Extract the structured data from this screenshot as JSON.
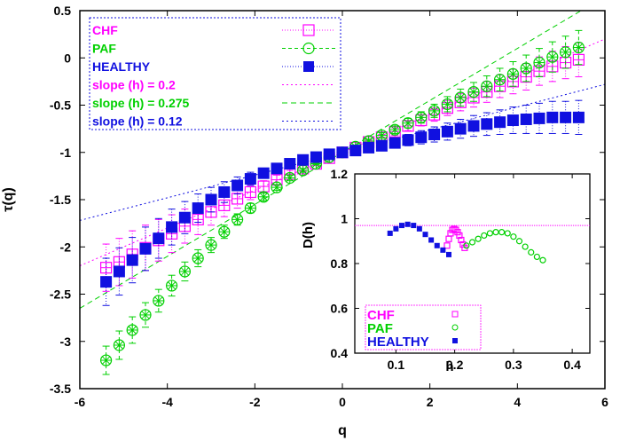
{
  "colors": {
    "CHF": "#ff00ff",
    "PAF": "#00d000",
    "HEALTHY": "#1010e0",
    "frame": "#000000",
    "hline": "#ff00ff"
  },
  "chart_data": [
    {
      "type": "scatter",
      "xlabel": "q",
      "ylabel": "τ(q)",
      "xlim": [
        -6,
        6
      ],
      "ylim": [
        -3.5,
        0.5
      ],
      "xticks": [
        "-6",
        "-4",
        "-2",
        "0",
        "2",
        "4",
        "6"
      ],
      "yticks": [
        "0.5",
        "0",
        "-0.5",
        "-1",
        "-1.5",
        "-2",
        "-2.5",
        "-3",
        "-3.5"
      ],
      "legend_position": "top-left",
      "legend": [
        {
          "label": "CHF",
          "color": "#ff00ff",
          "style": "points-square-plus"
        },
        {
          "label": "PAF",
          "color": "#00d000",
          "style": "points-circle-plus"
        },
        {
          "label": "HEALTHY",
          "color": "#1010e0",
          "style": "points-filled-square"
        },
        {
          "label": "slope (h) = 0.2",
          "color": "#ff00ff",
          "style": "dotted-line"
        },
        {
          "label": "slope (h) = 0.275",
          "color": "#00d000",
          "style": "dashed-line"
        },
        {
          "label": "slope (h) = 0.12",
          "color": "#1010e0",
          "style": "dotted-line"
        }
      ],
      "q": [
        -5.4,
        -5.1,
        -4.8,
        -4.5,
        -4.2,
        -3.9,
        -3.6,
        -3.3,
        -3.0,
        -2.7,
        -2.4,
        -2.1,
        -1.8,
        -1.5,
        -1.2,
        -0.9,
        -0.6,
        -0.3,
        0.0,
        0.3,
        0.6,
        0.9,
        1.2,
        1.5,
        1.8,
        2.1,
        2.4,
        2.7,
        3.0,
        3.3,
        3.6,
        3.9,
        4.2,
        4.5,
        4.8,
        5.1,
        5.4
      ],
      "series": [
        {
          "name": "CHF",
          "color": "#ff00ff",
          "values": [
            -2.22,
            -2.16,
            -2.08,
            -2.01,
            -1.93,
            -1.86,
            -1.78,
            -1.71,
            -1.63,
            -1.56,
            -1.49,
            -1.42,
            -1.36,
            -1.29,
            -1.23,
            -1.17,
            -1.12,
            -1.06,
            -1.0,
            -0.95,
            -0.89,
            -0.84,
            -0.78,
            -0.72,
            -0.66,
            -0.6,
            -0.53,
            -0.47,
            -0.42,
            -0.36,
            -0.3,
            -0.25,
            -0.2,
            -0.14,
            -0.09,
            -0.05,
            -0.02
          ],
          "error": [
            0.25,
            0.25,
            0.25,
            0.24,
            0.22,
            0.2,
            0.18,
            0.16,
            0.14,
            0.12,
            0.1,
            0.08,
            0.06,
            0.05,
            0.04,
            0.03,
            0.02,
            0.01,
            0.0,
            0.01,
            0.02,
            0.03,
            0.04,
            0.05,
            0.06,
            0.07,
            0.08,
            0.09,
            0.1,
            0.11,
            0.12,
            0.13,
            0.14,
            0.15,
            0.16,
            0.17,
            0.18
          ]
        },
        {
          "name": "PAF",
          "color": "#00d000",
          "values": [
            -3.2,
            -3.04,
            -2.88,
            -2.72,
            -2.57,
            -2.41,
            -2.26,
            -2.12,
            -1.98,
            -1.84,
            -1.71,
            -1.59,
            -1.47,
            -1.37,
            -1.27,
            -1.19,
            -1.12,
            -1.05,
            -1.0,
            -0.94,
            -0.88,
            -0.82,
            -0.76,
            -0.69,
            -0.63,
            -0.56,
            -0.49,
            -0.42,
            -0.36,
            -0.3,
            -0.23,
            -0.17,
            -0.11,
            -0.05,
            0.01,
            0.06,
            0.11
          ],
          "error": [
            0.15,
            0.15,
            0.14,
            0.13,
            0.12,
            0.11,
            0.1,
            0.09,
            0.08,
            0.07,
            0.06,
            0.05,
            0.04,
            0.03,
            0.03,
            0.02,
            0.01,
            0.01,
            0.0,
            0.01,
            0.02,
            0.03,
            0.04,
            0.05,
            0.06,
            0.07,
            0.08,
            0.09,
            0.1,
            0.11,
            0.12,
            0.13,
            0.14,
            0.15,
            0.16,
            0.17,
            0.18
          ]
        },
        {
          "name": "HEALTHY",
          "color": "#1010e0",
          "values": [
            -2.37,
            -2.26,
            -2.14,
            -2.02,
            -1.91,
            -1.79,
            -1.69,
            -1.59,
            -1.5,
            -1.42,
            -1.35,
            -1.28,
            -1.22,
            -1.17,
            -1.12,
            -1.08,
            -1.05,
            -1.02,
            -1.0,
            -0.98,
            -0.95,
            -0.93,
            -0.9,
            -0.87,
            -0.84,
            -0.81,
            -0.78,
            -0.75,
            -0.72,
            -0.7,
            -0.68,
            -0.66,
            -0.65,
            -0.64,
            -0.63,
            -0.63,
            -0.63
          ],
          "error": [
            0.25,
            0.25,
            0.24,
            0.23,
            0.21,
            0.19,
            0.17,
            0.15,
            0.13,
            0.11,
            0.09,
            0.07,
            0.05,
            0.04,
            0.03,
            0.02,
            0.01,
            0.01,
            0.0,
            0.02,
            0.03,
            0.04,
            0.05,
            0.06,
            0.07,
            0.08,
            0.09,
            0.1,
            0.11,
            0.12,
            0.13,
            0.14,
            0.15,
            0.16,
            0.17,
            0.17,
            0.18
          ]
        }
      ],
      "fit_lines": [
        {
          "name": "slope (h) = 0.2",
          "slope": 0.2,
          "intercept": -1.0,
          "color": "#ff00ff",
          "dash": "2,3"
        },
        {
          "name": "slope (h) = 0.275",
          "slope": 0.275,
          "intercept": -1.0,
          "color": "#00d000",
          "dash": "6,4"
        },
        {
          "name": "slope (h) = 0.12",
          "slope": 0.12,
          "intercept": -1.0,
          "color": "#1010e0",
          "dash": "2,3"
        }
      ]
    },
    {
      "type": "scatter",
      "xlabel": "h",
      "ylabel": "D(h)",
      "xlim": [
        0.03,
        0.43
      ],
      "ylim": [
        0.4,
        1.2
      ],
      "xticks": [
        "0.1",
        "0.2",
        "0.3",
        "0.4"
      ],
      "yticks": [
        "0.4",
        "0.6",
        "0.8",
        "1",
        "1.2"
      ],
      "hline": 0.97,
      "legend_position": "bottom-left",
      "legend": [
        {
          "label": "CHF",
          "color": "#ff00ff"
        },
        {
          "label": "PAF",
          "color": "#00d000"
        },
        {
          "label": "HEALTHY",
          "color": "#1010e0"
        }
      ],
      "series": [
        {
          "name": "CHF",
          "color": "#ff00ff",
          "x": [
            0.187,
            0.19,
            0.193,
            0.196,
            0.199,
            0.202,
            0.205,
            0.208,
            0.211,
            0.214,
            0.217
          ],
          "y": [
            0.88,
            0.91,
            0.935,
            0.95,
            0.955,
            0.95,
            0.94,
            0.925,
            0.905,
            0.885,
            0.87
          ]
        },
        {
          "name": "PAF",
          "color": "#00d000",
          "x": [
            0.22,
            0.23,
            0.24,
            0.25,
            0.26,
            0.27,
            0.28,
            0.29,
            0.3,
            0.31,
            0.32,
            0.33,
            0.34,
            0.35
          ],
          "y": [
            0.88,
            0.895,
            0.91,
            0.925,
            0.935,
            0.94,
            0.94,
            0.935,
            0.92,
            0.9,
            0.875,
            0.85,
            0.83,
            0.815
          ]
        },
        {
          "name": "HEALTHY",
          "color": "#1010e0",
          "x": [
            0.09,
            0.1,
            0.11,
            0.12,
            0.13,
            0.14,
            0.15,
            0.16,
            0.17,
            0.18,
            0.19
          ],
          "y": [
            0.935,
            0.955,
            0.97,
            0.975,
            0.97,
            0.955,
            0.93,
            0.905,
            0.88,
            0.86,
            0.84
          ]
        }
      ]
    }
  ]
}
